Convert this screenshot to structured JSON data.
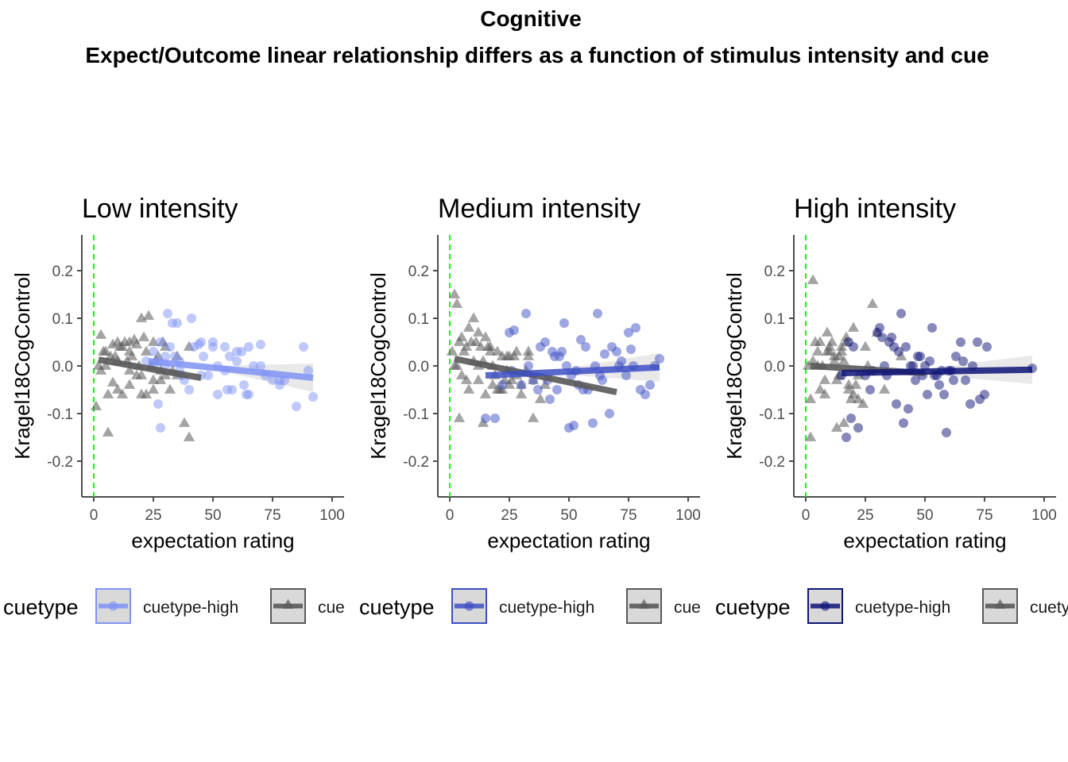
{
  "figure": {
    "title_line1": "Cognitive",
    "title_line2": "Expect/Outcome linear relationship differs as a function of stimulus intensity and cue"
  },
  "colors": {
    "low_high_cue": "#7f93f5",
    "medium_high_cue": "#3d4fc4",
    "high_high_cue": "#0f1478",
    "low_cue": "#595959",
    "reference_line": "#22ee22",
    "ci_band": "#bfbfbf",
    "axis": "#4d4d4d"
  },
  "legend_labels": {
    "title": "cuetype",
    "high": "cuetype-high",
    "low_panel1": "cue",
    "low_panel2": "cue",
    "low_panel3": "cuety"
  },
  "chart_data": [
    {
      "type": "scatter",
      "title": "Low intensity",
      "xlabel": "expectation rating",
      "ylabel": "Kragel18CogControl",
      "xlim": [
        -5,
        105
      ],
      "ylim": [
        -0.275,
        0.275
      ],
      "xticks": [
        0,
        25,
        50,
        75,
        100
      ],
      "yticks": [
        -0.2,
        -0.1,
        0.0,
        0.1,
        0.2
      ],
      "reference_line_x": 0,
      "series": [
        {
          "name": "cuetype-high",
          "marker": "circle",
          "color": "#7f93f5",
          "fit": [
            [
              23,
              0.01
            ],
            [
              92,
              -0.025
            ]
          ],
          "x": [
            25,
            28,
            31,
            33,
            35,
            28,
            22,
            25,
            30,
            27,
            32,
            34,
            36,
            38,
            40,
            42,
            44,
            45,
            46,
            48,
            50,
            52,
            55,
            57,
            58,
            60,
            62,
            63,
            64,
            65,
            67,
            70,
            72,
            75,
            78,
            80,
            85,
            88,
            90,
            92,
            37,
            41,
            50,
            55,
            60,
            27,
            30,
            36,
            45,
            52,
            56,
            65,
            70,
            78
          ],
          "y": [
            0.03,
            0.05,
            0.11,
            0.09,
            0.09,
            -0.13,
            0.01,
            0.0,
            0.02,
            -0.08,
            0.04,
            0.02,
            -0.01,
            -0.03,
            -0.05,
            0.04,
            0.045,
            0.05,
            0.02,
            -0.02,
            0.05,
            -0.06,
            0.04,
            0.02,
            -0.05,
            0.01,
            0.03,
            -0.04,
            -0.06,
            0.04,
            0.0,
            0.045,
            -0.02,
            -0.03,
            -0.04,
            -0.03,
            -0.085,
            0.04,
            -0.01,
            -0.065,
            -0.02,
            0.1,
            0.04,
            -0.01,
            0.03,
            0.01,
            0.0,
            0.01,
            -0.02,
            0.0,
            -0.05,
            -0.06,
            0.0,
            -0.03
          ]
        },
        {
          "name": "cue",
          "marker": "triangle",
          "color": "#595959",
          "fit": [
            [
              2,
              0.013
            ],
            [
              45,
              -0.025
            ]
          ],
          "x": [
            1,
            3,
            5,
            7,
            8,
            10,
            12,
            13,
            15,
            17,
            18,
            20,
            21,
            23,
            25,
            26,
            28,
            2,
            4,
            6,
            9,
            11,
            14,
            16,
            19,
            22,
            24,
            27,
            29,
            30,
            33,
            35,
            38,
            40,
            6,
            8,
            10,
            12,
            15,
            18,
            20,
            22,
            25,
            28,
            30,
            32,
            10,
            15,
            20,
            25,
            35,
            40,
            3,
            5,
            15
          ],
          "y": [
            -0.085,
            0.065,
            0.03,
            0.02,
            0.045,
            0.05,
            0.04,
            0.05,
            0.03,
            0.055,
            0.045,
            0.1,
            0.06,
            0.105,
            0.05,
            0.01,
            -0.01,
            0.0,
            0.03,
            -0.14,
            0.02,
            0.04,
            0.01,
            0.02,
            0.0,
            0.03,
            0.0,
            0.02,
            0.05,
            0.04,
            -0.01,
            -0.02,
            -0.12,
            -0.15,
            -0.06,
            -0.035,
            -0.05,
            -0.06,
            -0.04,
            -0.02,
            -0.06,
            -0.06,
            -0.05,
            -0.03,
            -0.02,
            -0.05,
            0.01,
            -0.01,
            -0.02,
            -0.03,
            0.02,
            0.04,
            -0.01,
            0.0,
            0.05
          ]
        }
      ]
    },
    {
      "type": "scatter",
      "title": "Medium intensity",
      "xlabel": "expectation rating",
      "ylabel": "Kragel18CogControl",
      "xlim": [
        -5,
        105
      ],
      "ylim": [
        -0.275,
        0.275
      ],
      "xticks": [
        0,
        25,
        50,
        75,
        100
      ],
      "yticks": [
        -0.2,
        -0.1,
        0.0,
        0.1,
        0.2
      ],
      "reference_line_x": 0,
      "series": [
        {
          "name": "cuetype-high",
          "marker": "circle",
          "color": "#3d4fc4",
          "fit": [
            [
              15,
              -0.02
            ],
            [
              88,
              -0.003
            ]
          ],
          "x": [
            15,
            19,
            22,
            25,
            27,
            30,
            32,
            35,
            37,
            40,
            42,
            44,
            45,
            47,
            48,
            50,
            52,
            54,
            55,
            57,
            58,
            60,
            62,
            63,
            65,
            67,
            68,
            70,
            72,
            75,
            76,
            78,
            80,
            84,
            86,
            88,
            26,
            33,
            41,
            46,
            49,
            53,
            56,
            61,
            64,
            71,
            74,
            77,
            82,
            38,
            43,
            51
          ],
          "y": [
            -0.11,
            -0.11,
            -0.04,
            0.07,
            0.075,
            -0.04,
            0.11,
            -0.03,
            -0.05,
            0.05,
            -0.07,
            0.02,
            -0.05,
            0.03,
            0.09,
            -0.13,
            -0.125,
            -0.04,
            0.055,
            0.04,
            -0.05,
            -0.12,
            0.11,
            -0.02,
            0.025,
            -0.1,
            0.04,
            0.03,
            0.01,
            0.07,
            0.035,
            0.08,
            -0.05,
            -0.04,
            0.0,
            0.015,
            -0.01,
            0.0,
            -0.03,
            0.02,
            0.0,
            -0.01,
            -0.05,
            0.0,
            -0.03,
            0.0,
            -0.02,
            0.0,
            -0.06,
            0.04,
            0.03,
            -0.02
          ]
        },
        {
          "name": "cue",
          "marker": "triangle",
          "color": "#595959",
          "fit": [
            [
              2,
              0.015
            ],
            [
              70,
              -0.055
            ]
          ],
          "x": [
            1,
            2,
            3,
            4,
            5,
            6,
            7,
            8,
            9,
            10,
            11,
            12,
            13,
            14,
            15,
            16,
            17,
            18,
            19,
            20,
            21,
            22,
            23,
            24,
            25,
            26,
            28,
            30,
            32,
            33,
            35,
            38,
            40,
            3,
            5,
            8,
            12,
            15,
            18,
            22,
            25,
            30,
            35,
            10,
            20,
            28,
            7,
            14,
            4,
            12,
            17,
            24,
            27,
            33,
            2
          ],
          "y": [
            0.03,
            0.15,
            0.13,
            -0.11,
            0.06,
            0.03,
            0.04,
            0.08,
            0.05,
            0.1,
            0.05,
            0.07,
            0.04,
            -0.12,
            0.06,
            0.04,
            0.04,
            0.0,
            -0.02,
            0.03,
            -0.05,
            0.02,
            -0.03,
            0.02,
            -0.04,
            -0.03,
            -0.02,
            -0.06,
            -0.01,
            0.03,
            -0.03,
            -0.07,
            -0.04,
            0.0,
            -0.02,
            -0.05,
            -0.03,
            -0.06,
            -0.04,
            -0.05,
            0.02,
            -0.04,
            -0.11,
            0.01,
            -0.05,
            0.03,
            -0.03,
            0.01,
            0.05,
            0.0,
            0.03,
            -0.01,
            0.02,
            0.02,
            0.0
          ]
        }
      ]
    },
    {
      "type": "scatter",
      "title": "High intensity",
      "xlabel": "expectation rating",
      "ylabel": "Kragel18CogControl",
      "xlim": [
        -5,
        105
      ],
      "ylim": [
        -0.275,
        0.275
      ],
      "xticks": [
        0,
        25,
        50,
        75,
        100
      ],
      "yticks": [
        -0.2,
        -0.1,
        0.0,
        0.1,
        0.2
      ],
      "reference_line_x": 0,
      "series": [
        {
          "name": "cuetype-high",
          "marker": "circle",
          "color": "#0f1478",
          "fit": [
            [
              15,
              -0.015
            ],
            [
              95,
              -0.008
            ]
          ],
          "x": [
            15,
            17,
            18,
            20,
            22,
            25,
            27,
            30,
            31,
            32,
            33,
            35,
            36,
            37,
            38,
            39,
            40,
            41,
            42,
            43,
            45,
            46,
            47,
            48,
            50,
            51,
            52,
            53,
            55,
            56,
            57,
            58,
            59,
            60,
            62,
            63,
            65,
            67,
            69,
            70,
            72,
            75,
            76,
            95,
            34,
            44,
            49,
            54,
            61,
            66,
            73,
            28,
            19
          ],
          "y": [
            -0.02,
            -0.15,
            0.05,
            0.04,
            -0.13,
            -0.02,
            -0.05,
            0.07,
            0.08,
            0.06,
            0.0,
            0.05,
            0.06,
            0.04,
            -0.08,
            0.03,
            0.11,
            -0.12,
            0.04,
            -0.09,
            0.0,
            -0.03,
            0.02,
            0.02,
            0.0,
            -0.06,
            0.01,
            0.08,
            -0.02,
            -0.04,
            -0.01,
            -0.06,
            -0.14,
            -0.01,
            -0.03,
            0.02,
            0.05,
            -0.03,
            -0.08,
            0.0,
            0.05,
            -0.06,
            0.04,
            -0.005,
            -0.02,
            0.0,
            -0.02,
            -0.02,
            -0.01,
            0.01,
            -0.07,
            -0.01,
            -0.11
          ]
        },
        {
          "name": "cue",
          "marker": "triangle",
          "color": "#595959",
          "fit": [
            [
              2,
              0.0
            ],
            [
              50,
              -0.015
            ]
          ],
          "x": [
            2,
            3,
            4,
            5,
            6,
            7,
            8,
            9,
            10,
            11,
            12,
            13,
            14,
            15,
            16,
            17,
            18,
            19,
            20,
            22,
            24,
            25,
            28,
            30,
            40,
            2,
            5,
            8,
            12,
            15,
            18,
            22,
            3,
            6,
            10,
            14,
            17,
            21,
            26,
            33,
            1,
            9,
            13,
            16,
            20
          ],
          "y": [
            -0.15,
            0.18,
            0.05,
            0.03,
            -0.05,
            0.0,
            -0.06,
            0.07,
            0.04,
            0.05,
            0.02,
            -0.03,
            0.02,
            0.04,
            -0.12,
            0.06,
            -0.05,
            -0.07,
            0.08,
            -0.07,
            -0.08,
            0.04,
            0.13,
            0.07,
            0.02,
            -0.07,
            0.0,
            -0.03,
            0.01,
            0.03,
            -0.04,
            -0.02,
            0.01,
            0.05,
            0.03,
            -0.02,
            0.05,
            -0.04,
            0.0,
            -0.05,
            0.0,
            0.03,
            -0.13,
            0.01,
            -0.06
          ]
        }
      ]
    }
  ]
}
